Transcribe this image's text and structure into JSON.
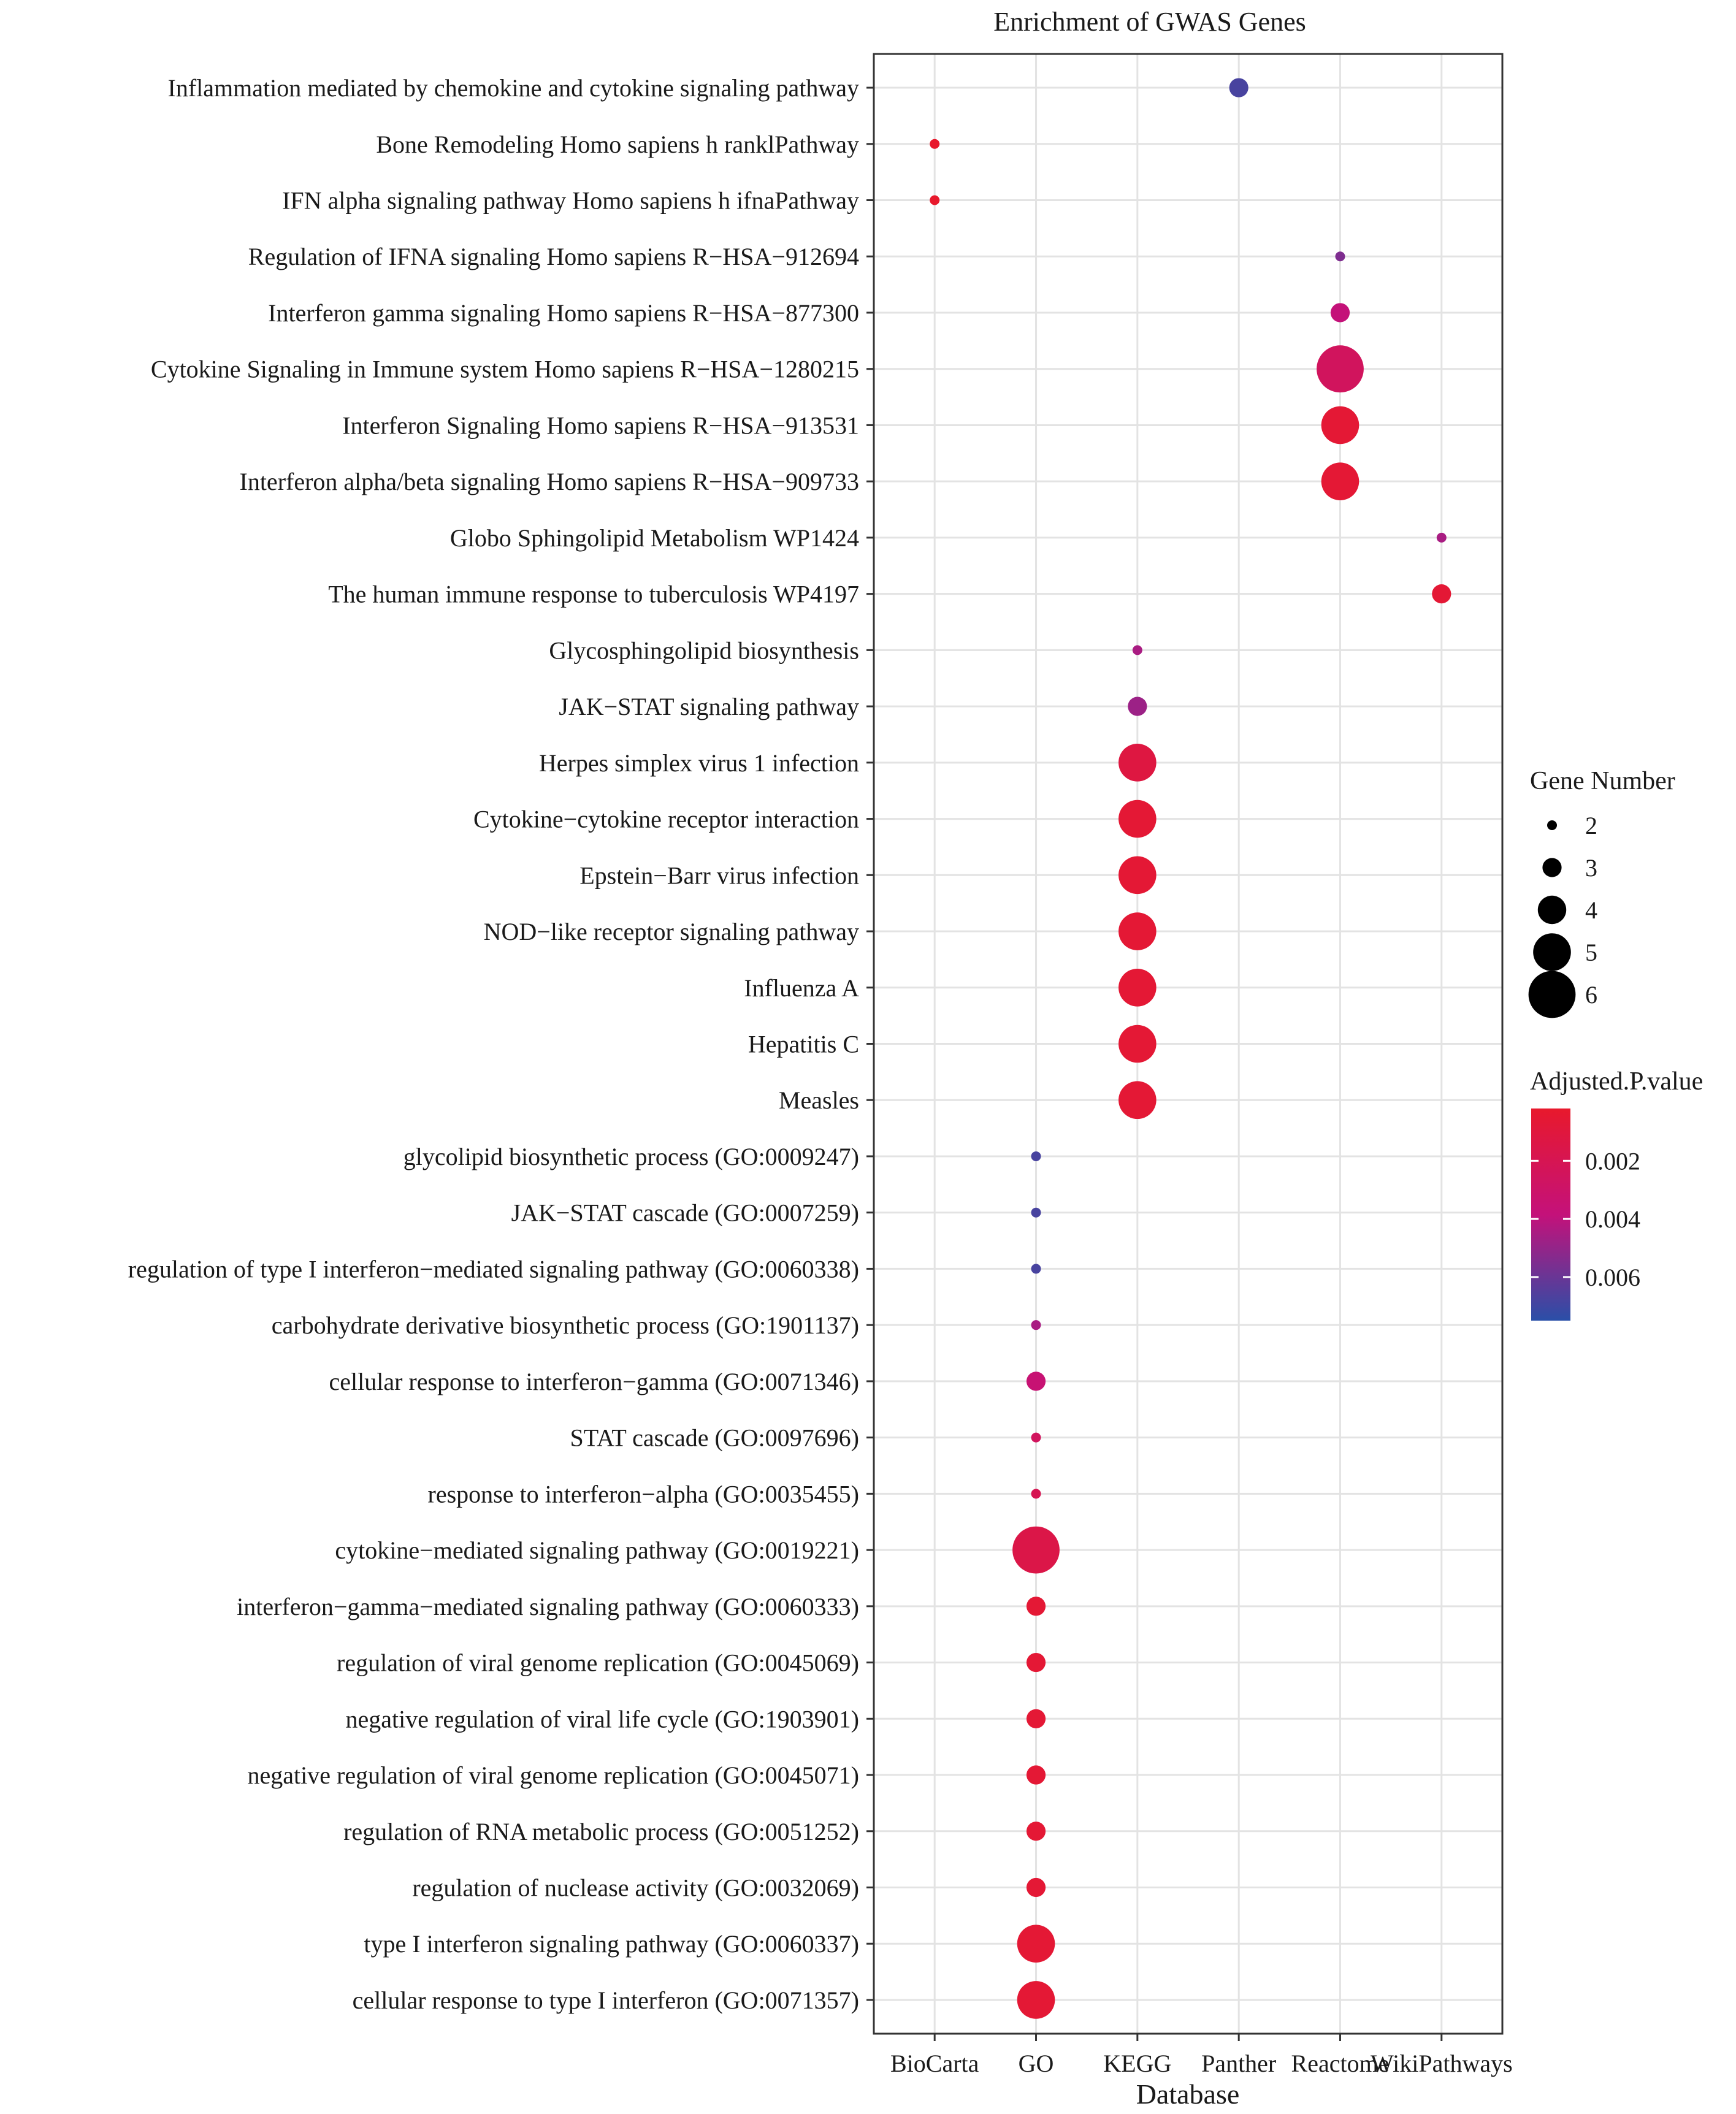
{
  "chart_data": {
    "type": "scatter",
    "title": "Enrichment of GWAS Genes",
    "xlabel": "Database",
    "ylabel": "",
    "x_categories": [
      "BioCarta",
      "GO",
      "KEGG",
      "Panther",
      "Reactome",
      "WikiPathways"
    ],
    "y_categories": [
      "Inflammation mediated by chemokine and cytokine signaling pathway",
      "Bone Remodeling Homo sapiens h ranklPathway",
      "IFN alpha signaling pathway Homo sapiens h ifnaPathway",
      "Regulation of IFNA signaling Homo sapiens R−HSA−912694",
      "Interferon gamma signaling Homo sapiens R−HSA−877300",
      "Cytokine Signaling in Immune system Homo sapiens R−HSA−1280215",
      "Interferon Signaling Homo sapiens R−HSA−913531",
      "Interferon alpha/beta signaling Homo sapiens R−HSA−909733",
      "Globo Sphingolipid Metabolism WP1424",
      "The human immune response to tuberculosis WP4197",
      "Glycosphingolipid biosynthesis",
      "JAK−STAT signaling pathway",
      "Herpes simplex virus 1 infection",
      "Cytokine−cytokine receptor interaction",
      "Epstein−Barr virus infection",
      "NOD−like receptor signaling pathway",
      "Influenza A",
      "Hepatitis C",
      "Measles",
      "glycolipid biosynthetic process (GO:0009247)",
      "JAK−STAT cascade (GO:0007259)",
      "regulation of type I interferon−mediated signaling pathway (GO:0060338)",
      "carbohydrate derivative biosynthetic process (GO:1901137)",
      "cellular response to interferon−gamma (GO:0071346)",
      "STAT cascade (GO:0097696)",
      "response to interferon−alpha (GO:0035455)",
      "cytokine−mediated signaling pathway (GO:0019221)",
      "interferon−gamma−mediated signaling pathway (GO:0060333)",
      "regulation of viral genome replication (GO:0045069)",
      "negative regulation of viral life cycle (GO:1903901)",
      "negative regulation of viral genome replication (GO:0045071)",
      "regulation of RNA metabolic process (GO:0051252)",
      "regulation of nuclease activity (GO:0032069)",
      "type I interferon signaling pathway (GO:0060337)",
      "cellular response to type I interferon (GO:0071357)"
    ],
    "points": [
      {
        "term": 0,
        "database": "Panther",
        "gene_number": 3,
        "padj": 0.0068
      },
      {
        "term": 1,
        "database": "BioCarta",
        "gene_number": 2,
        "padj": 0.0002
      },
      {
        "term": 2,
        "database": "BioCarta",
        "gene_number": 2,
        "padj": 0.0002
      },
      {
        "term": 3,
        "database": "Reactome",
        "gene_number": 2,
        "padj": 0.0055
      },
      {
        "term": 4,
        "database": "Reactome",
        "gene_number": 3,
        "padj": 0.0038
      },
      {
        "term": 5,
        "database": "Reactome",
        "gene_number": 6,
        "padj": 0.0025
      },
      {
        "term": 6,
        "database": "Reactome",
        "gene_number": 5,
        "padj": 0.0006
      },
      {
        "term": 7,
        "database": "Reactome",
        "gene_number": 5,
        "padj": 0.0006
      },
      {
        "term": 8,
        "database": "WikiPathways",
        "gene_number": 2,
        "padj": 0.0045
      },
      {
        "term": 9,
        "database": "WikiPathways",
        "gene_number": 3,
        "padj": 0.0006
      },
      {
        "term": 10,
        "database": "KEGG",
        "gene_number": 2,
        "padj": 0.0045
      },
      {
        "term": 11,
        "database": "KEGG",
        "gene_number": 3,
        "padj": 0.0048
      },
      {
        "term": 12,
        "database": "KEGG",
        "gene_number": 5,
        "padj": 0.0012
      },
      {
        "term": 13,
        "database": "KEGG",
        "gene_number": 5,
        "padj": 0.0006
      },
      {
        "term": 14,
        "database": "KEGG",
        "gene_number": 5,
        "padj": 0.0006
      },
      {
        "term": 15,
        "database": "KEGG",
        "gene_number": 5,
        "padj": 0.0006
      },
      {
        "term": 16,
        "database": "KEGG",
        "gene_number": 5,
        "padj": 0.0006
      },
      {
        "term": 17,
        "database": "KEGG",
        "gene_number": 5,
        "padj": 0.0006
      },
      {
        "term": 18,
        "database": "KEGG",
        "gene_number": 5,
        "padj": 0.0006
      },
      {
        "term": 19,
        "database": "GO",
        "gene_number": 2,
        "padj": 0.0068
      },
      {
        "term": 20,
        "database": "GO",
        "gene_number": 2,
        "padj": 0.0068
      },
      {
        "term": 21,
        "database": "GO",
        "gene_number": 2,
        "padj": 0.0068
      },
      {
        "term": 22,
        "database": "GO",
        "gene_number": 2,
        "padj": 0.0045
      },
      {
        "term": 23,
        "database": "GO",
        "gene_number": 3,
        "padj": 0.0035
      },
      {
        "term": 24,
        "database": "GO",
        "gene_number": 2,
        "padj": 0.0025
      },
      {
        "term": 25,
        "database": "GO",
        "gene_number": 2,
        "padj": 0.002
      },
      {
        "term": 26,
        "database": "GO",
        "gene_number": 6,
        "padj": 0.0015
      },
      {
        "term": 27,
        "database": "GO",
        "gene_number": 3,
        "padj": 0.0006
      },
      {
        "term": 28,
        "database": "GO",
        "gene_number": 3,
        "padj": 0.0006
      },
      {
        "term": 29,
        "database": "GO",
        "gene_number": 3,
        "padj": 0.0006
      },
      {
        "term": 30,
        "database": "GO",
        "gene_number": 3,
        "padj": 0.0006
      },
      {
        "term": 31,
        "database": "GO",
        "gene_number": 3,
        "padj": 0.0006
      },
      {
        "term": 32,
        "database": "GO",
        "gene_number": 3,
        "padj": 0.0006
      },
      {
        "term": 33,
        "database": "GO",
        "gene_number": 5,
        "padj": 0.0006
      },
      {
        "term": 34,
        "database": "GO",
        "gene_number": 5,
        "padj": 0.0006
      }
    ],
    "size_legend": {
      "title": "Gene Number",
      "values": [
        2,
        3,
        4,
        5,
        6
      ]
    },
    "color_legend": {
      "title": "Adjusted.P.value",
      "range": [
        0.0002,
        0.0075
      ],
      "ticks": [
        0.002,
        0.004,
        0.006
      ],
      "tick_labels": [
        "0.002",
        "0.004",
        "0.006"
      ],
      "low_color": "#e8192c",
      "mid_color": "#c4117a",
      "high_color": "#2a4fa8"
    },
    "grid": true
  }
}
